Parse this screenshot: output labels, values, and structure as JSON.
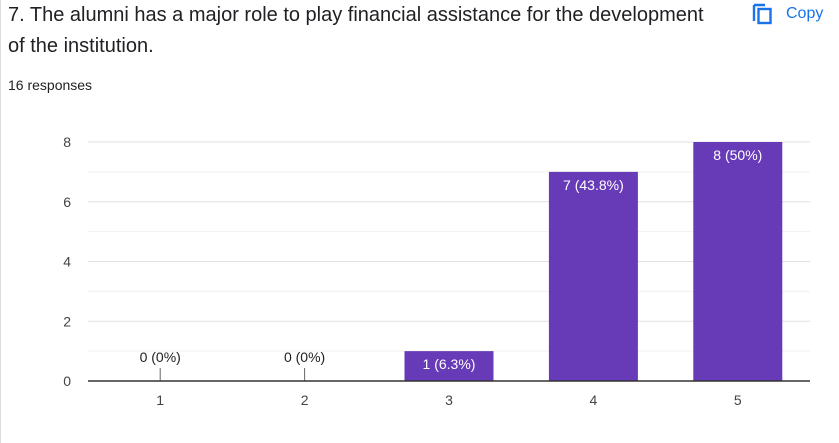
{
  "question": {
    "title": "7. The alumni has a major role to play financial assistance for the development of the institution.",
    "responses": "16 responses"
  },
  "copy_button": {
    "label": "Copy",
    "icon": "copy-icon"
  },
  "colors": {
    "bar": "#673ab7",
    "accent": "#1a73e8",
    "grid": "#e0e0e0",
    "axis": "#333333"
  },
  "chart_data": {
    "type": "bar",
    "categories": [
      "1",
      "2",
      "3",
      "4",
      "5"
    ],
    "values": [
      0,
      0,
      1,
      7,
      8
    ],
    "data_labels": [
      "0 (0%)",
      "0 (0%)",
      "1 (6.3%)",
      "7 (43.8%)",
      "8 (50%)"
    ],
    "ylim": [
      0,
      8
    ],
    "yticks": [
      "0",
      "2",
      "4",
      "6",
      "8"
    ],
    "xlabel": "",
    "ylabel": "",
    "grid": true
  }
}
